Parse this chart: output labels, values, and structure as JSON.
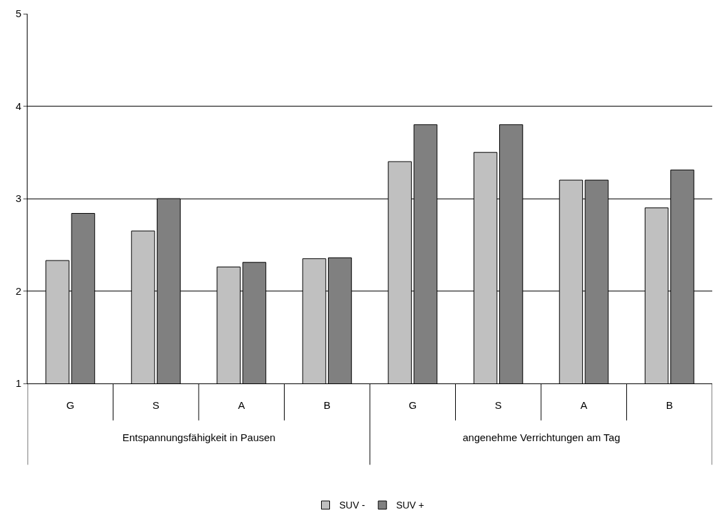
{
  "chart_data": {
    "type": "bar",
    "categories": [
      "G",
      "S",
      "A",
      "B",
      "G",
      "S",
      "A",
      "B"
    ],
    "series": [
      {
        "name": "SUV -",
        "color": "#c0c0c0",
        "values": [
          2.33,
          2.65,
          2.26,
          2.35,
          3.4,
          3.5,
          3.2,
          2.9
        ]
      },
      {
        "name": "SUV +",
        "color": "#808080",
        "values": [
          2.84,
          3.0,
          2.31,
          2.36,
          3.8,
          3.8,
          3.2,
          3.31
        ]
      }
    ],
    "annotations": [
      "Entspannungsfähigkeit in Pausen",
      "angenehme Verrichtungen am Tag"
    ],
    "ylim": [
      1,
      5
    ],
    "yticks": [
      1,
      2,
      3,
      4,
      5
    ],
    "grid": "y",
    "legend": "bottom"
  }
}
